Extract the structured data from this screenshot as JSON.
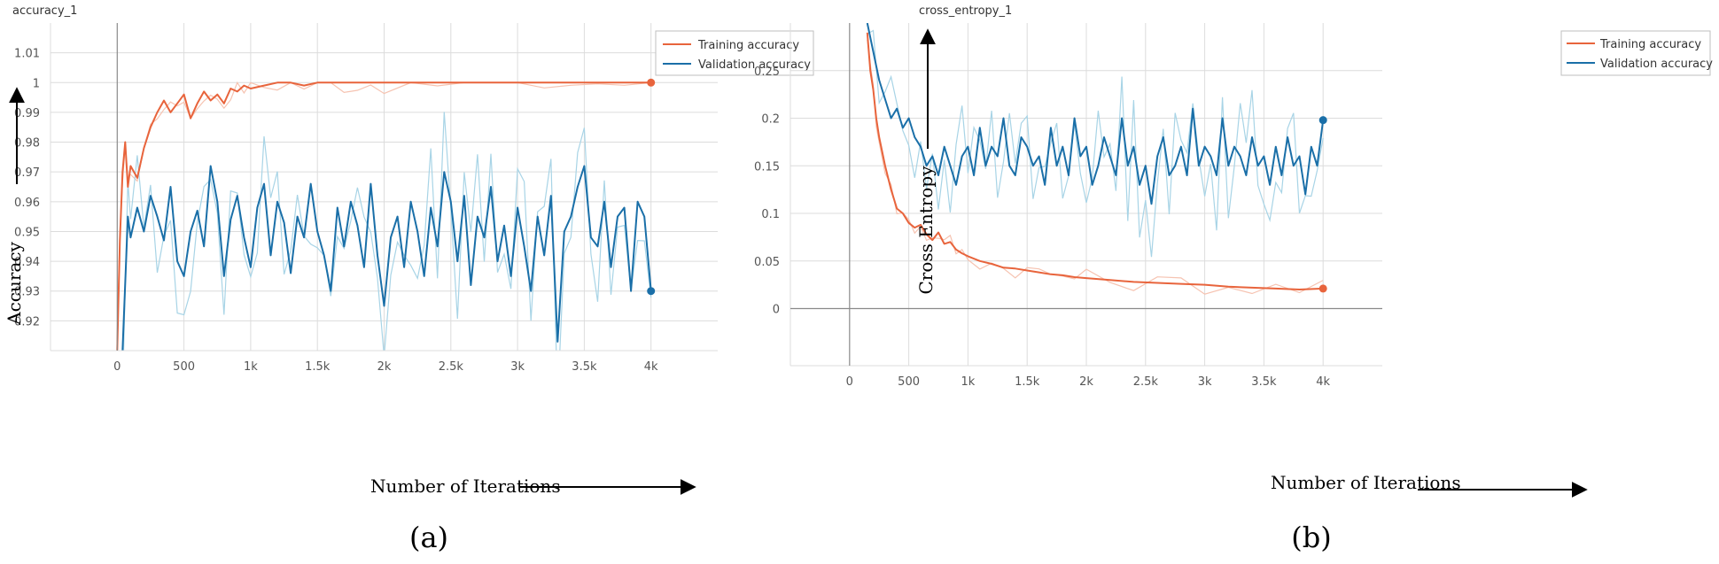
{
  "colors": {
    "training": "#e8643c",
    "training_raw": "#f6c3b1",
    "validation": "#1a6fa8",
    "validation_raw": "#a8d4e6",
    "grid": "#dcdcdc",
    "axis": "#8a8a8a",
    "tick_text": "#555555"
  },
  "chart_data": [
    {
      "type": "line",
      "panel_label": "(a)",
      "title": "accuracy_1",
      "xlabel": "Number of Iterations",
      "ylabel": "Accuracy",
      "xlim": [
        -500,
        4500
      ],
      "ylim": [
        0.91,
        1.02
      ],
      "x_ticks": [
        0,
        500,
        1000,
        1500,
        2000,
        2500,
        3000,
        3500,
        4000
      ],
      "x_tick_labels": [
        "0",
        "500",
        "1k",
        "1.5k",
        "2k",
        "2.5k",
        "3k",
        "3.5k",
        "4k"
      ],
      "y_ticks": [
        0.92,
        0.93,
        0.94,
        0.95,
        0.96,
        0.97,
        0.98,
        0.99,
        1,
        1.01
      ],
      "y_tick_labels": [
        "0.92",
        "0.93",
        "0.94",
        "0.95",
        "0.96",
        "0.97",
        "0.98",
        "0.99",
        "1",
        "1.01"
      ],
      "grid": true,
      "legend_position": "top-right",
      "series": [
        {
          "name": "Training accuracy",
          "x": [
            0,
            20,
            40,
            60,
            80,
            100,
            150,
            200,
            250,
            300,
            350,
            400,
            450,
            500,
            550,
            600,
            650,
            700,
            750,
            800,
            850,
            900,
            950,
            1000,
            1100,
            1200,
            1300,
            1400,
            1500,
            1600,
            1700,
            1800,
            1900,
            2000,
            2200,
            2400,
            2600,
            2800,
            3000,
            3200,
            3400,
            3600,
            3800,
            4000
          ],
          "values": [
            0.91,
            0.947,
            0.97,
            0.98,
            0.965,
            0.972,
            0.968,
            0.978,
            0.985,
            0.99,
            0.994,
            0.99,
            0.993,
            0.996,
            0.988,
            0.993,
            0.997,
            0.994,
            0.996,
            0.993,
            0.998,
            0.997,
            0.999,
            0.998,
            0.999,
            1,
            1,
            0.999,
            1,
            1,
            1,
            1,
            1,
            1,
            1,
            1,
            1,
            1,
            1,
            1,
            1,
            1,
            1,
            1
          ]
        },
        {
          "name": "Validation accuracy",
          "x": [
            40,
            80,
            100,
            150,
            200,
            250,
            300,
            350,
            400,
            450,
            500,
            550,
            600,
            650,
            700,
            750,
            800,
            850,
            900,
            950,
            1000,
            1050,
            1100,
            1150,
            1200,
            1250,
            1300,
            1350,
            1400,
            1450,
            1500,
            1550,
            1600,
            1650,
            1700,
            1750,
            1800,
            1850,
            1900,
            1950,
            2000,
            2050,
            2100,
            2150,
            2200,
            2250,
            2300,
            2350,
            2400,
            2450,
            2500,
            2550,
            2600,
            2650,
            2700,
            2750,
            2800,
            2850,
            2900,
            2950,
            3000,
            3050,
            3100,
            3150,
            3200,
            3250,
            3300,
            3350,
            3400,
            3450,
            3500,
            3550,
            3600,
            3650,
            3700,
            3750,
            3800,
            3850,
            3900,
            3950,
            4000
          ],
          "values": [
            0.91,
            0.955,
            0.948,
            0.958,
            0.95,
            0.962,
            0.955,
            0.947,
            0.965,
            0.94,
            0.935,
            0.95,
            0.957,
            0.945,
            0.972,
            0.96,
            0.935,
            0.954,
            0.962,
            0.948,
            0.938,
            0.958,
            0.966,
            0.942,
            0.96,
            0.953,
            0.936,
            0.955,
            0.948,
            0.966,
            0.95,
            0.942,
            0.93,
            0.958,
            0.945,
            0.96,
            0.952,
            0.938,
            0.966,
            0.942,
            0.925,
            0.948,
            0.955,
            0.938,
            0.96,
            0.95,
            0.935,
            0.958,
            0.945,
            0.97,
            0.96,
            0.94,
            0.962,
            0.932,
            0.955,
            0.948,
            0.965,
            0.94,
            0.952,
            0.935,
            0.958,
            0.945,
            0.93,
            0.955,
            0.942,
            0.962,
            0.913,
            0.95,
            0.955,
            0.965,
            0.972,
            0.948,
            0.945,
            0.96,
            0.938,
            0.955,
            0.958,
            0.93,
            0.96,
            0.955,
            0.93
          ]
        }
      ]
    },
    {
      "type": "line",
      "panel_label": "(b)",
      "title": "cross_entropy_1",
      "xlabel": "Number of Iterations",
      "ylabel": "Cross Entropy",
      "xlim": [
        -500,
        4500
      ],
      "ylim": [
        -0.06,
        0.3
      ],
      "x_ticks": [
        0,
        500,
        1000,
        1500,
        2000,
        2500,
        3000,
        3500,
        4000
      ],
      "x_tick_labels": [
        "0",
        "500",
        "1k",
        "1.5k",
        "2k",
        "2.5k",
        "3k",
        "3.5k",
        "4k"
      ],
      "y_ticks": [
        0,
        0.05,
        0.1,
        0.15,
        0.2,
        0.25
      ],
      "y_tick_labels": [
        "0",
        "0.05",
        "0.1",
        "0.15",
        "0.2",
        "0.25"
      ],
      "grid": true,
      "legend_position": "top-right",
      "series": [
        {
          "name": "Training accuracy",
          "x": [
            150,
            175,
            200,
            225,
            250,
            300,
            350,
            400,
            450,
            500,
            550,
            600,
            650,
            700,
            750,
            800,
            850,
            900,
            950,
            1000,
            1100,
            1200,
            1300,
            1400,
            1500,
            1600,
            1700,
            1800,
            1900,
            2000,
            2200,
            2400,
            2600,
            2800,
            3000,
            3200,
            3400,
            3600,
            3800,
            4000
          ],
          "values": [
            0.29,
            0.25,
            0.23,
            0.2,
            0.18,
            0.15,
            0.125,
            0.105,
            0.1,
            0.09,
            0.085,
            0.088,
            0.078,
            0.072,
            0.08,
            0.068,
            0.07,
            0.062,
            0.058,
            0.055,
            0.05,
            0.047,
            0.043,
            0.042,
            0.04,
            0.038,
            0.036,
            0.035,
            0.033,
            0.032,
            0.03,
            0.028,
            0.027,
            0.026,
            0.025,
            0.023,
            0.022,
            0.021,
            0.02,
            0.021
          ]
        },
        {
          "name": "Validation accuracy",
          "x": [
            150,
            200,
            250,
            300,
            350,
            400,
            450,
            500,
            550,
            600,
            650,
            700,
            750,
            800,
            850,
            900,
            950,
            1000,
            1050,
            1100,
            1150,
            1200,
            1250,
            1300,
            1350,
            1400,
            1450,
            1500,
            1550,
            1600,
            1650,
            1700,
            1750,
            1800,
            1850,
            1900,
            1950,
            2000,
            2050,
            2100,
            2150,
            2200,
            2250,
            2300,
            2350,
            2400,
            2450,
            2500,
            2550,
            2600,
            2650,
            2700,
            2750,
            2800,
            2850,
            2900,
            2950,
            3000,
            3050,
            3100,
            3150,
            3200,
            3250,
            3300,
            3350,
            3400,
            3450,
            3500,
            3550,
            3600,
            3650,
            3700,
            3750,
            3800,
            3850,
            3900,
            3950,
            4000
          ],
          "values": [
            0.3,
            0.27,
            0.24,
            0.22,
            0.2,
            0.21,
            0.19,
            0.2,
            0.18,
            0.17,
            0.15,
            0.16,
            0.14,
            0.17,
            0.15,
            0.13,
            0.16,
            0.17,
            0.14,
            0.19,
            0.15,
            0.17,
            0.16,
            0.2,
            0.15,
            0.14,
            0.18,
            0.17,
            0.15,
            0.16,
            0.13,
            0.19,
            0.15,
            0.17,
            0.14,
            0.2,
            0.16,
            0.17,
            0.13,
            0.15,
            0.18,
            0.16,
            0.14,
            0.2,
            0.15,
            0.17,
            0.13,
            0.15,
            0.11,
            0.16,
            0.18,
            0.14,
            0.15,
            0.17,
            0.14,
            0.21,
            0.15,
            0.17,
            0.16,
            0.14,
            0.2,
            0.15,
            0.17,
            0.16,
            0.14,
            0.18,
            0.15,
            0.16,
            0.13,
            0.17,
            0.14,
            0.18,
            0.15,
            0.16,
            0.12,
            0.17,
            0.15,
            0.198
          ]
        }
      ]
    }
  ]
}
